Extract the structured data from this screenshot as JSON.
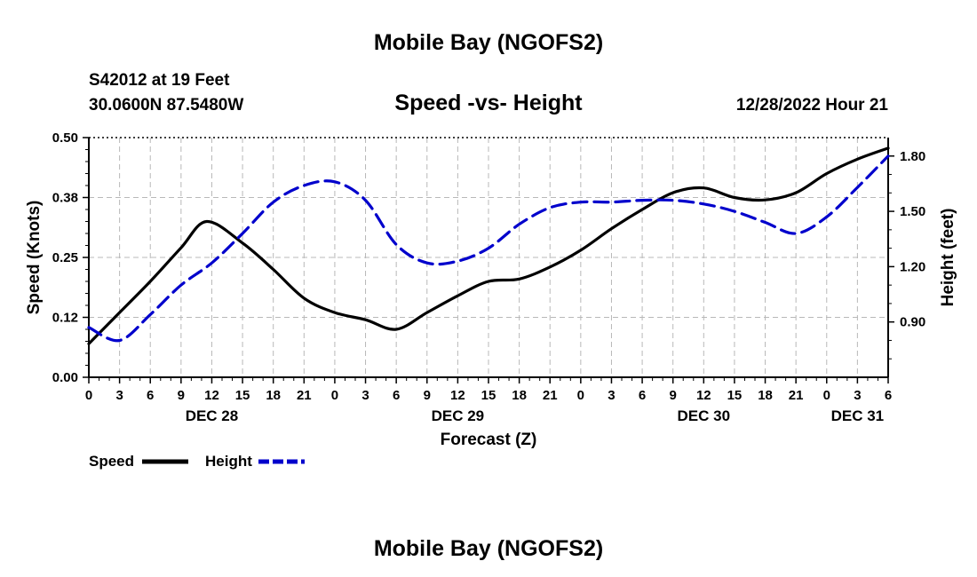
{
  "header": {
    "title": "Mobile Bay (NGOFS2)",
    "station": "S42012 at 19 Feet",
    "location": "30.0600N  87.5480W",
    "chart_title": "Speed -vs- Height",
    "timestamp": "12/28/2022 Hour 21"
  },
  "footer": {
    "title": "Mobile Bay (NGOFS2)"
  },
  "chart_data": {
    "type": "line",
    "title": "Speed -vs- Height",
    "xlabel": "Forecast (Z)",
    "ylabel_left": "Speed (Knots)",
    "ylabel_right": "Height (feet)",
    "x_range_hours": [
      0,
      78
    ],
    "x_tick_labels": [
      "0",
      "3",
      "6",
      "9",
      "12",
      "15",
      "18",
      "21",
      "0",
      "3",
      "6",
      "9",
      "12",
      "15",
      "18",
      "21",
      "0",
      "3",
      "6",
      "9",
      "12",
      "15",
      "18",
      "21",
      "0",
      "3",
      "6"
    ],
    "date_labels": [
      {
        "label": "DEC 28",
        "at_hour": 12
      },
      {
        "label": "DEC 29",
        "at_hour": 36
      },
      {
        "label": "DEC 30",
        "at_hour": 60
      },
      {
        "label": "DEC 31",
        "at_hour": 75
      }
    ],
    "y_left": {
      "min": 0,
      "max": 0.5,
      "ticks": [
        0.0,
        0.125,
        0.25,
        0.375,
        0.5
      ],
      "tick_labels": [
        "0.00",
        "0.12",
        "0.25",
        "0.38",
        "0.50"
      ]
    },
    "y_right": {
      "min": 0.6,
      "max": 1.9,
      "ticks": [
        0.9,
        1.2,
        1.5,
        1.8
      ],
      "tick_labels": [
        "0.90",
        "1.20",
        "1.50",
        "1.80"
      ]
    },
    "grid": true,
    "series": [
      {
        "name": "Speed",
        "axis": "left",
        "color": "#000000",
        "dash": "solid",
        "x": [
          0,
          3,
          6,
          9,
          11.5,
          15,
          18,
          21,
          24,
          27,
          30,
          33,
          36,
          39,
          42,
          45,
          48,
          51,
          54,
          57,
          60,
          63,
          66,
          69,
          72,
          75,
          78
        ],
        "y": [
          0.07,
          0.135,
          0.2,
          0.27,
          0.325,
          0.28,
          0.225,
          0.165,
          0.135,
          0.12,
          0.1,
          0.135,
          0.17,
          0.2,
          0.205,
          0.23,
          0.265,
          0.31,
          0.35,
          0.385,
          0.395,
          0.375,
          0.37,
          0.385,
          0.425,
          0.455,
          0.478
        ]
      },
      {
        "name": "Height",
        "axis": "right",
        "color": "#0000cc",
        "dash": "dashed",
        "x": [
          0,
          3,
          6,
          9,
          12,
          15,
          18,
          21,
          24,
          27,
          30,
          33,
          36,
          39,
          42,
          45,
          48,
          51,
          54,
          57,
          60,
          63,
          66,
          69,
          72,
          75,
          78
        ],
        "y": [
          0.87,
          0.8,
          0.94,
          1.1,
          1.22,
          1.38,
          1.55,
          1.64,
          1.66,
          1.56,
          1.32,
          1.22,
          1.23,
          1.3,
          1.43,
          1.52,
          1.55,
          1.55,
          1.56,
          1.56,
          1.54,
          1.5,
          1.44,
          1.38,
          1.47,
          1.63,
          1.8
        ]
      }
    ],
    "legend": {
      "placement": "bottom-left",
      "entries": [
        {
          "label": "Speed",
          "color": "#000000",
          "dash": "solid"
        },
        {
          "label": "Height",
          "color": "#0000cc",
          "dash": "dashed"
        }
      ]
    }
  }
}
